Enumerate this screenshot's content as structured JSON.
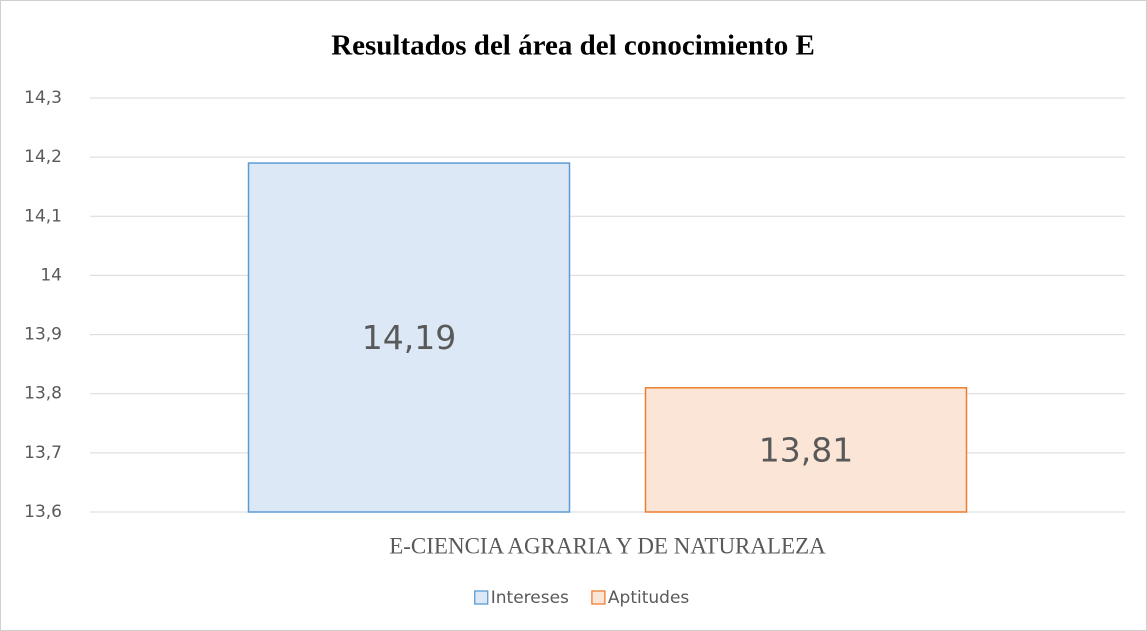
{
  "chart_data": {
    "type": "bar",
    "title": "Resultados del área del conocimiento E",
    "categories": [
      "E-CIENCIA AGRARIA Y DE NATURALEZA"
    ],
    "series": [
      {
        "name": "Intereses",
        "color": "#5b9bd5",
        "fill": "#dde8f6",
        "values": [
          14.19
        ],
        "value_labels": [
          "14,19"
        ]
      },
      {
        "name": "Aptitudes",
        "color": "#ed7d31",
        "fill": "#fbe5d6",
        "values": [
          13.81
        ],
        "value_labels": [
          "13,81"
        ]
      }
    ],
    "ylim": [
      13.6,
      14.3
    ],
    "yticks": [
      {
        "value": 13.6,
        "label": "13,6"
      },
      {
        "value": 13.7,
        "label": "13,7"
      },
      {
        "value": 13.8,
        "label": "13,8"
      },
      {
        "value": 13.9,
        "label": "13,9"
      },
      14,
      {
        "value": 14.1,
        "label": "14,1"
      },
      {
        "value": 14.2,
        "label": "14,2"
      },
      {
        "value": 14.3,
        "label": "14,3"
      }
    ],
    "grid": true,
    "legend": "bottom"
  }
}
